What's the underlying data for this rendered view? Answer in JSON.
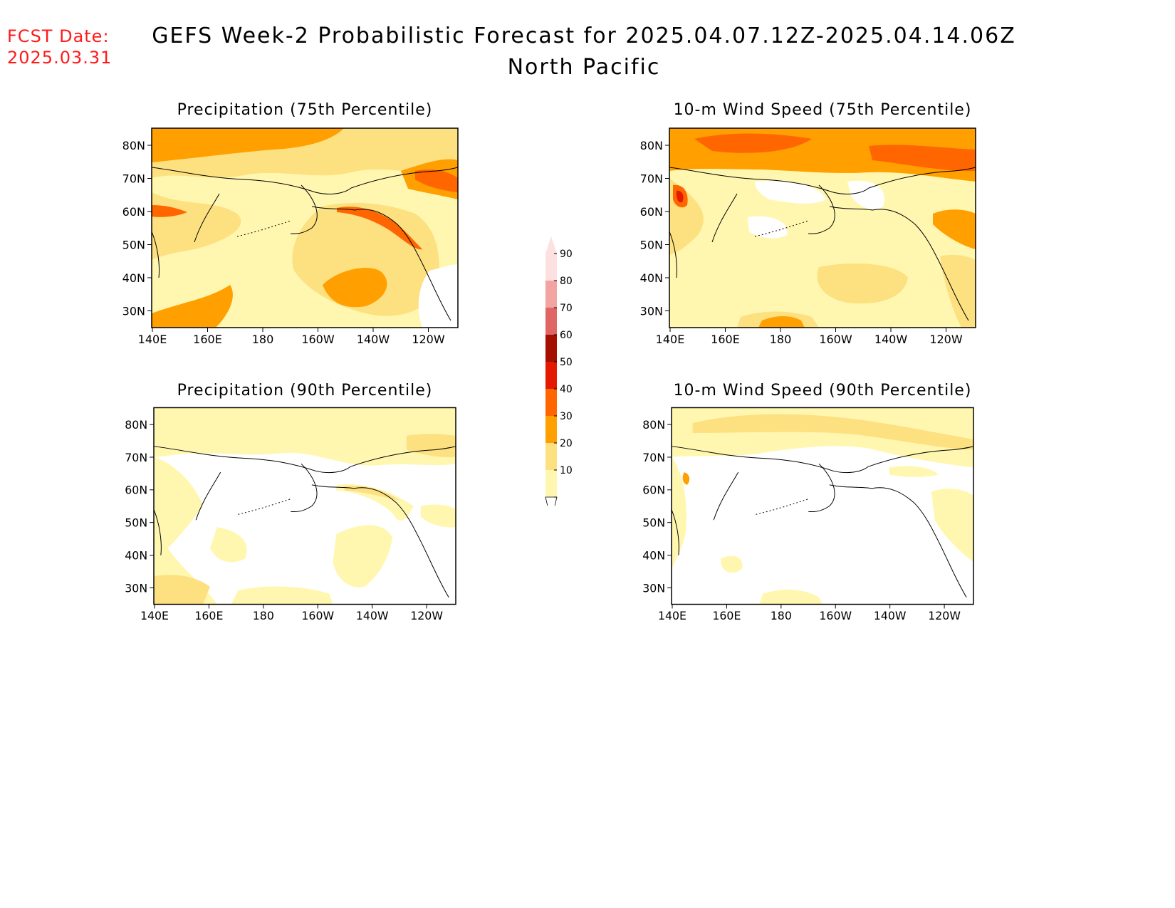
{
  "fcst": {
    "line1": "FCST Date:",
    "line2": "2025.03.31"
  },
  "title": {
    "line1": "GEFS Week-2 Probabilistic Forecast for 2025.04.07.12Z-2025.04.14.06Z",
    "line2": "North Pacific"
  },
  "axes": {
    "lat_labels": [
      "80N",
      "70N",
      "60N",
      "50N",
      "40N",
      "30N"
    ],
    "lon_labels": [
      "140E",
      "160E",
      "180",
      "160W",
      "140W",
      "120W"
    ]
  },
  "panels": [
    {
      "id": "precip75",
      "title": "Precipitation (75th Percentile)"
    },
    {
      "id": "wind75",
      "title": "10-m Wind Speed (75th Percentile)"
    },
    {
      "id": "precip90",
      "title": "Precipitation (90th Percentile)"
    },
    {
      "id": "wind90",
      "title": "10-m Wind Speed (90th Percentile)"
    }
  ],
  "colorbar": {
    "labels": [
      "90",
      "80",
      "70",
      "60",
      "50",
      "40",
      "30",
      "20",
      "10"
    ],
    "colors": [
      "#fde0e0",
      "#f4a3a3",
      "#e06666",
      "#a50f00",
      "#e31a00",
      "#ff6600",
      "#ff9f00",
      "#fde080",
      "#fff7b0"
    ]
  }
}
